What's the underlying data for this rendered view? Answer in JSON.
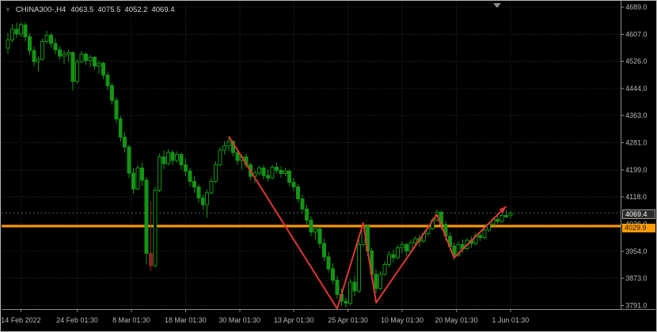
{
  "header": {
    "symbol_period": "CHINA300-,H4",
    "open": "4063.5",
    "high": "4075.5",
    "low": "4052.2",
    "close": "4069.4"
  },
  "price_tags": {
    "bid": "4069.4",
    "horizontal_line": "4029.9"
  },
  "chart_data": {
    "type": "candlestick",
    "title": "CHINA300-,H4",
    "symbol": "CHINA300-",
    "timeframe": "H4",
    "xlabel": "",
    "ylabel": "",
    "grid": true,
    "ylim": [
      3762,
      4700
    ],
    "y_ticks": [
      4689.0,
      4607.0,
      4526.0,
      4444.0,
      4363.0,
      4281.0,
      4199.0,
      4118.0,
      4036.0,
      3954.0,
      3873.0,
      3791.0
    ],
    "x_ticks": [
      {
        "label": "14 Feb 2022",
        "i": 3
      },
      {
        "label": "24 Feb 01:30",
        "i": 16
      },
      {
        "label": "8 Mar 01:30",
        "i": 28.5
      },
      {
        "label": "18 Mar 01:30",
        "i": 41
      },
      {
        "label": "30 Mar 01:30",
        "i": 53.5
      },
      {
        "label": "13 Apr 01:30",
        "i": 66
      },
      {
        "label": "25 Apr 01:30",
        "i": 78.5
      },
      {
        "label": "10 May 01:30",
        "i": 91
      },
      {
        "label": "20 May 01:30",
        "i": 103.5
      },
      {
        "label": "1 Jun 01:30",
        "i": 116
      }
    ],
    "ohlc_format": "[open, high, low, close]",
    "candles": [
      [
        4565,
        4612,
        4548,
        4590
      ],
      [
        4590,
        4638,
        4582,
        4622
      ],
      [
        4622,
        4642,
        4596,
        4608
      ],
      [
        4608,
        4645,
        4600,
        4635
      ],
      [
        4635,
        4642,
        4585,
        4600
      ],
      [
        4600,
        4610,
        4545,
        4558
      ],
      [
        4558,
        4570,
        4512,
        4525
      ],
      [
        4525,
        4540,
        4495,
        4532
      ],
      [
        4532,
        4595,
        4528,
        4585
      ],
      [
        4585,
        4618,
        4580,
        4605
      ],
      [
        4605,
        4612,
        4568,
        4580
      ],
      [
        4580,
        4595,
        4548,
        4560
      ],
      [
        4560,
        4572,
        4530,
        4542
      ],
      [
        4542,
        4558,
        4518,
        4548
      ],
      [
        4548,
        4560,
        4525,
        4552
      ],
      [
        4552,
        4556,
        4438,
        4465
      ],
      [
        4465,
        4532,
        4458,
        4525
      ],
      [
        4525,
        4558,
        4520,
        4548
      ],
      [
        4548,
        4552,
        4515,
        4528
      ],
      [
        4528,
        4545,
        4508,
        4538
      ],
      [
        4538,
        4542,
        4500,
        4512
      ],
      [
        4512,
        4528,
        4488,
        4520
      ],
      [
        4520,
        4525,
        4472,
        4485
      ],
      [
        4485,
        4495,
        4440,
        4452
      ],
      [
        4452,
        4462,
        4395,
        4408
      ],
      [
        4408,
        4418,
        4340,
        4352
      ],
      [
        4352,
        4362,
        4285,
        4298
      ],
      [
        4298,
        4312,
        4252,
        4268
      ],
      [
        4268,
        4275,
        4175,
        4190
      ],
      [
        4190,
        4205,
        4128,
        4142
      ],
      [
        4142,
        4215,
        4138,
        4205
      ],
      [
        4205,
        4222,
        4152,
        4168
      ],
      [
        4168,
        4178,
        3915,
        3948
      ],
      [
        3948,
        4105,
        3895,
        3912
      ],
      [
        3912,
        4148,
        3905,
        4138
      ],
      [
        4138,
        4248,
        4132,
        4238
      ],
      [
        4238,
        4258,
        4202,
        4218
      ],
      [
        4218,
        4262,
        4212,
        4252
      ],
      [
        4252,
        4258,
        4215,
        4228
      ],
      [
        4228,
        4255,
        4222,
        4245
      ],
      [
        4245,
        4252,
        4200,
        4215
      ],
      [
        4215,
        4235,
        4180,
        4195
      ],
      [
        4195,
        4205,
        4150,
        4165
      ],
      [
        4165,
        4180,
        4130,
        4148
      ],
      [
        4148,
        4155,
        4100,
        4115
      ],
      [
        4115,
        4125,
        4080,
        4095
      ],
      [
        4095,
        4140,
        4055,
        4130
      ],
      [
        4130,
        4175,
        4125,
        4165
      ],
      [
        4165,
        4225,
        4160,
        4215
      ],
      [
        4215,
        4268,
        4210,
        4258
      ],
      [
        4258,
        4285,
        4245,
        4272
      ],
      [
        4272,
        4295,
        4255,
        4285
      ],
      [
        4285,
        4290,
        4240,
        4252
      ],
      [
        4252,
        4262,
        4215,
        4228
      ],
      [
        4228,
        4245,
        4200,
        4238
      ],
      [
        4238,
        4248,
        4205,
        4215
      ],
      [
        4215,
        4222,
        4168,
        4180
      ],
      [
        4180,
        4198,
        4160,
        4190
      ],
      [
        4190,
        4212,
        4182,
        4205
      ],
      [
        4205,
        4215,
        4170,
        4182
      ],
      [
        4182,
        4200,
        4165,
        4175
      ],
      [
        4175,
        4215,
        4170,
        4208
      ],
      [
        4208,
        4222,
        4188,
        4198
      ],
      [
        4198,
        4210,
        4175,
        4188
      ],
      [
        4188,
        4205,
        4180,
        4196
      ],
      [
        4196,
        4200,
        4150,
        4162
      ],
      [
        4162,
        4175,
        4135,
        4148
      ],
      [
        4148,
        4158,
        4100,
        4112
      ],
      [
        4112,
        4125,
        4070,
        4082
      ],
      [
        4082,
        4095,
        4035,
        4048
      ],
      [
        4048,
        4060,
        4000,
        4012
      ],
      [
        4012,
        4030,
        3990,
        4022
      ],
      [
        4022,
        4028,
        3965,
        3978
      ],
      [
        3978,
        3992,
        3925,
        3938
      ],
      [
        3938,
        3952,
        3890,
        3902
      ],
      [
        3902,
        3918,
        3855,
        3868
      ],
      [
        3868,
        3880,
        3812,
        3825
      ],
      [
        3825,
        3842,
        3790,
        3805
      ],
      [
        3805,
        3815,
        3786,
        3798
      ],
      [
        3798,
        3872,
        3792,
        3862
      ],
      [
        3862,
        3880,
        3820,
        3835
      ],
      [
        3835,
        3990,
        3830,
        3975
      ],
      [
        3975,
        4042,
        3970,
        4030
      ],
      [
        4030,
        4035,
        3940,
        3955
      ],
      [
        3955,
        3965,
        3870,
        3885
      ],
      [
        3885,
        3900,
        3828,
        3842
      ],
      [
        3842,
        3895,
        3838,
        3885
      ],
      [
        3885,
        3925,
        3880,
        3915
      ],
      [
        3915,
        3955,
        3905,
        3945
      ],
      [
        3945,
        3960,
        3920,
        3935
      ],
      [
        3935,
        3975,
        3930,
        3965
      ],
      [
        3965,
        3985,
        3950,
        3975
      ],
      [
        3975,
        3980,
        3940,
        3955
      ],
      [
        3955,
        3990,
        3950,
        3980
      ],
      [
        3980,
        4000,
        3975,
        3992
      ],
      [
        3992,
        4005,
        3970,
        3985
      ],
      [
        3985,
        4015,
        3980,
        4008
      ],
      [
        4008,
        4030,
        4000,
        4022
      ],
      [
        4022,
        4055,
        4018,
        4048
      ],
      [
        4048,
        4082,
        4045,
        4072
      ],
      [
        4072,
        4078,
        4020,
        4035
      ],
      [
        4035,
        4045,
        3985,
        4000
      ],
      [
        4000,
        4010,
        3955,
        3970
      ],
      [
        3970,
        3980,
        3928,
        3942
      ],
      [
        3942,
        3985,
        3938,
        3975
      ],
      [
        3975,
        3990,
        3950,
        3962
      ],
      [
        3962,
        3995,
        3958,
        3988
      ],
      [
        3988,
        4000,
        3965,
        3978
      ],
      [
        3978,
        4010,
        3972,
        4002
      ],
      [
        4002,
        4015,
        3985,
        3996
      ],
      [
        3996,
        4025,
        3990,
        4018
      ],
      [
        4018,
        4042,
        4012,
        4036
      ],
      [
        4036,
        4058,
        4030,
        4050
      ],
      [
        4050,
        4068,
        4038,
        4044
      ],
      [
        4044,
        4070,
        4040,
        4062
      ],
      [
        4062,
        4078,
        4055,
        4058
      ],
      [
        4063.5,
        4075.5,
        4052.2,
        4069.4
      ]
    ],
    "candle_color_overrides": {
      "33": "#8b2323"
    },
    "hline": {
      "price": 4029.9,
      "color": "#ff9c00"
    },
    "bid_line": {
      "price": 4069.4
    },
    "trendline": {
      "color": "#e03636",
      "arrow_end": true,
      "points": [
        {
          "i": 51,
          "p": 4300
        },
        {
          "i": 76,
          "p": 3782
        },
        {
          "i": 82,
          "p": 4039
        },
        {
          "i": 85,
          "p": 3800
        },
        {
          "i": 99,
          "p": 4065
        },
        {
          "i": 103,
          "p": 3935
        },
        {
          "i": 115,
          "p": 4090
        }
      ]
    },
    "colors": {
      "background": "#000000",
      "candle": "#149414",
      "bull_fill": "#000000",
      "grid": "#2e2e2e",
      "axis_text": "#b8b8b8",
      "separator": "#8c8c8c"
    }
  }
}
